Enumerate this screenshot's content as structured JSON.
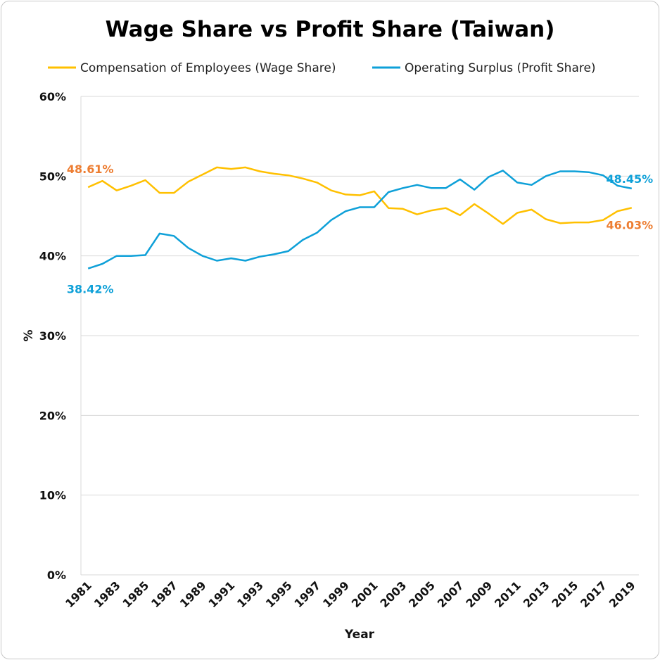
{
  "chart_data": {
    "type": "line",
    "title": "Wage Share vs Profit Share (Taiwan)",
    "xlabel": "Year",
    "ylabel": "%",
    "ylim": [
      0,
      60
    ],
    "y_ticks": [
      "0%",
      "10%",
      "20%",
      "30%",
      "40%",
      "50%",
      "60%"
    ],
    "grid": "horizontal",
    "legend": "top",
    "x": [
      1981,
      1982,
      1983,
      1984,
      1985,
      1986,
      1987,
      1988,
      1989,
      1990,
      1991,
      1992,
      1993,
      1994,
      1995,
      1996,
      1997,
      1998,
      1999,
      2000,
      2001,
      2002,
      2003,
      2004,
      2005,
      2006,
      2007,
      2008,
      2009,
      2010,
      2011,
      2012,
      2013,
      2014,
      2015,
      2016,
      2017,
      2018,
      2019
    ],
    "x_tick_labels": [
      "1981",
      "1983",
      "1985",
      "1987",
      "1989",
      "1991",
      "1993",
      "1995",
      "1997",
      "1999",
      "2001",
      "2003",
      "2005",
      "2007",
      "2009",
      "2011",
      "2013",
      "2015",
      "2017",
      "2019"
    ],
    "series": [
      {
        "name": "Compensation of Employees (Wage Share)",
        "color": "#FFC000",
        "label_color": "#ED7D31",
        "values": [
          48.61,
          49.4,
          48.2,
          48.8,
          49.5,
          47.9,
          47.9,
          49.3,
          50.2,
          51.1,
          50.9,
          51.1,
          50.6,
          50.3,
          50.1,
          49.7,
          49.2,
          48.2,
          47.7,
          47.6,
          48.1,
          46.0,
          45.9,
          45.2,
          45.7,
          46.0,
          45.1,
          46.5,
          45.3,
          44.0,
          45.4,
          45.8,
          44.6,
          44.1,
          44.2,
          44.2,
          44.5,
          45.6,
          46.03
        ],
        "first_label": "48.61%",
        "last_label": "46.03%"
      },
      {
        "name": "Operating Surplus (Profit Share)",
        "color": "#0EA0D8",
        "label_color": "#0EA0D8",
        "values": [
          38.42,
          39.0,
          40.0,
          40.0,
          40.1,
          42.8,
          42.5,
          41.0,
          40.0,
          39.4,
          39.7,
          39.4,
          39.9,
          40.2,
          40.6,
          42.0,
          42.9,
          44.5,
          45.6,
          46.1,
          46.1,
          48.0,
          48.5,
          48.9,
          48.5,
          48.5,
          49.6,
          48.3,
          49.9,
          50.7,
          49.2,
          48.9,
          50.0,
          50.6,
          50.6,
          50.5,
          50.1,
          48.8,
          48.45
        ],
        "first_label": "38.42%",
        "last_label": "48.45%"
      }
    ]
  }
}
